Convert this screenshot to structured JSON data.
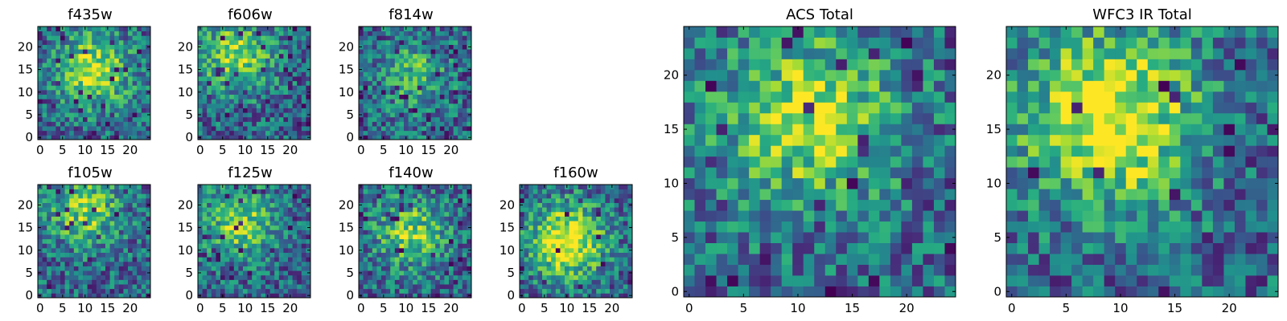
{
  "chart_data": [
    {
      "type": "heatmap",
      "title": "f435w",
      "xticks": [
        0,
        5,
        10,
        15,
        20
      ],
      "yticks": [
        0,
        5,
        10,
        15,
        20
      ],
      "xlim": [
        -0.5,
        24.5
      ],
      "ylim": [
        -0.5,
        24.5
      ],
      "grid": false,
      "colormap": "viridis",
      "seed": 11,
      "peak": [
        12,
        15
      ],
      "blob": 0.55,
      "dark": 0.05
    },
    {
      "type": "heatmap",
      "title": "f606w",
      "xticks": [
        0,
        5,
        10,
        15,
        20
      ],
      "yticks": [
        0,
        5,
        10,
        15,
        20
      ],
      "xlim": [
        -0.5,
        24.5
      ],
      "ylim": [
        -0.5,
        24.5
      ],
      "grid": false,
      "colormap": "viridis",
      "seed": 23,
      "peak": [
        8,
        18
      ],
      "blob": 0.5,
      "dark": 0.06
    },
    {
      "type": "heatmap",
      "title": "f814w",
      "xticks": [
        0,
        5,
        10,
        15,
        20
      ],
      "yticks": [
        0,
        5,
        10,
        15,
        20
      ],
      "xlim": [
        -0.5,
        24.5
      ],
      "ylim": [
        -0.5,
        24.5
      ],
      "grid": false,
      "colormap": "viridis",
      "seed": 37,
      "peak": [
        12,
        14
      ],
      "blob": 0.3,
      "dark": 0.07
    },
    {
      "type": "heatmap",
      "title": "f105w",
      "xticks": [
        0,
        5,
        10,
        15,
        20
      ],
      "yticks": [
        0,
        5,
        10,
        15,
        20
      ],
      "xlim": [
        -0.5,
        24.5
      ],
      "ylim": [
        -0.5,
        24.5
      ],
      "grid": false,
      "colormap": "viridis",
      "seed": 41,
      "peak": [
        10,
        19
      ],
      "blob": 0.45,
      "dark": 0.05
    },
    {
      "type": "heatmap",
      "title": "f125w",
      "xticks": [
        0,
        5,
        10,
        15,
        20
      ],
      "yticks": [
        0,
        5,
        10,
        15,
        20
      ],
      "xlim": [
        -0.5,
        24.5
      ],
      "ylim": [
        -0.5,
        24.5
      ],
      "grid": false,
      "colormap": "viridis",
      "seed": 53,
      "peak": [
        9,
        16
      ],
      "blob": 0.45,
      "dark": 0.06
    },
    {
      "type": "heatmap",
      "title": "f140w",
      "xticks": [
        0,
        5,
        10,
        15,
        20
      ],
      "yticks": [
        0,
        5,
        10,
        15,
        20
      ],
      "xlim": [
        -0.5,
        24.5
      ],
      "ylim": [
        -0.5,
        24.5
      ],
      "grid": false,
      "colormap": "viridis",
      "seed": 67,
      "peak": [
        11,
        14
      ],
      "blob": 0.45,
      "dark": 0.05
    },
    {
      "type": "heatmap",
      "title": "f160w",
      "xticks": [
        0,
        5,
        10,
        15,
        20
      ],
      "yticks": [
        0,
        5,
        10,
        15,
        20
      ],
      "xlim": [
        -0.5,
        24.5
      ],
      "ylim": [
        -0.5,
        24.5
      ],
      "grid": false,
      "colormap": "viridis",
      "seed": 79,
      "peak": [
        10,
        12
      ],
      "blob": 0.7,
      "dark": 0.03
    },
    {
      "type": "heatmap",
      "title": "ACS Total",
      "xticks": [
        0,
        5,
        10,
        15,
        20
      ],
      "yticks": [
        0,
        5,
        10,
        15,
        20
      ],
      "xlim": [
        -0.5,
        24.5
      ],
      "ylim": [
        -0.5,
        24.5
      ],
      "grid": false,
      "colormap": "viridis",
      "seed": 97,
      "peak": [
        11,
        16
      ],
      "blob": 0.55,
      "dark": 0.05
    },
    {
      "type": "heatmap",
      "title": "WFC3 IR Total",
      "xticks": [
        0,
        5,
        10,
        15,
        20
      ],
      "yticks": [
        0,
        5,
        10,
        15,
        20
      ],
      "xlim": [
        -0.5,
        24.5
      ],
      "ylim": [
        -0.5,
        24.5
      ],
      "grid": false,
      "colormap": "viridis",
      "seed": 131,
      "peak": [
        9,
        16
      ],
      "blob": 0.7,
      "dark": 0.03
    }
  ]
}
